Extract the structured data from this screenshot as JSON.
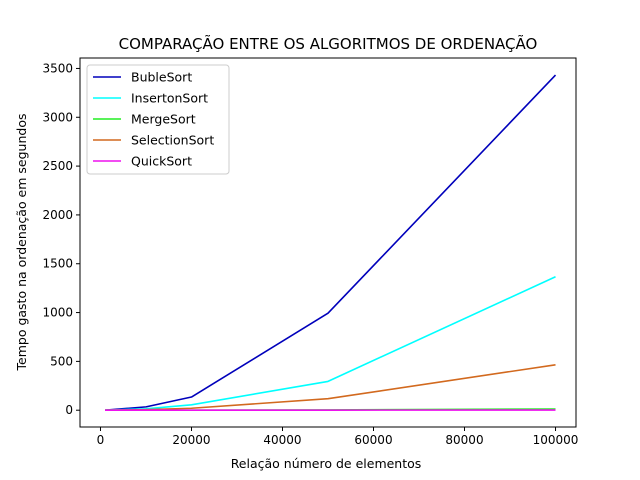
{
  "chart_data": {
    "type": "line",
    "title": "COMPARAÇÃO ENTRE OS ALGORITMOS DE ORDENAÇÃO",
    "xlabel": "Relação número de elementos",
    "ylabel": "Tempo gasto na ordenação em segundos",
    "x": [
      1000,
      10000,
      20000,
      50000,
      100000
    ],
    "xlim": [
      -4500,
      104500
    ],
    "ylim": [
      -172,
      3607
    ],
    "xticks": [
      0,
      20000,
      40000,
      60000,
      80000,
      100000
    ],
    "xtick_labels": [
      "0",
      "20000",
      "40000",
      "60000",
      "80000",
      "100000"
    ],
    "yticks": [
      0,
      500,
      1000,
      1500,
      2000,
      2500,
      3000,
      3500
    ],
    "ytick_labels": [
      "0",
      "500",
      "1000",
      "1500",
      "2000",
      "2500",
      "3000",
      "3500"
    ],
    "grid": false,
    "legend_position": "upper-left",
    "series": [
      {
        "name": "BubleSort",
        "color": "#0000bb",
        "values": [
          0.3,
          34,
          135,
          993,
          3432
        ]
      },
      {
        "name": "InsertonSort",
        "color": "#00ffff",
        "values": [
          0.15,
          14,
          55,
          295,
          1367
        ]
      },
      {
        "name": "MergeSort",
        "color": "#22ee22",
        "values": [
          0.01,
          0.1,
          0.3,
          3,
          12
        ]
      },
      {
        "name": "SelectionSort",
        "color": "#d2691e",
        "values": [
          0.05,
          5,
          20,
          118,
          465
        ]
      },
      {
        "name": "QuickSort",
        "color": "#ee11ee",
        "values": [
          0.005,
          0.05,
          0.15,
          0.6,
          1.5
        ]
      }
    ]
  }
}
